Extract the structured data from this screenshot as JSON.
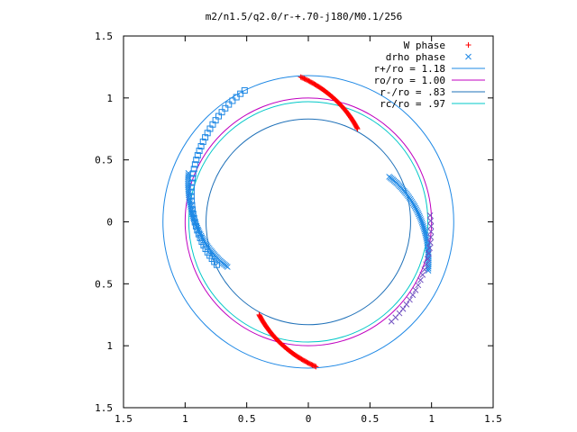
{
  "chart_data": {
    "type": "scatter",
    "title": "m2/n1.5/q2.0/r-+.70-j180/M0.1/256",
    "xlabel": "",
    "ylabel": "",
    "xlim": [
      -1.5,
      1.5
    ],
    "ylim": [
      -1.5,
      1.5
    ],
    "xticks": [
      -1.5,
      -1.0,
      -0.5,
      0,
      0.5,
      1.0,
      1.5
    ],
    "xtick_labels": [
      "1.5",
      "1",
      "0.5",
      "0",
      "0.5",
      "1",
      "1.5"
    ],
    "yticks": [
      1.5,
      1.0,
      0.5,
      0,
      -0.5,
      -1.0,
      -1.5
    ],
    "ytick_labels": [
      "1.5",
      "1",
      "0.5",
      "0",
      "0.5",
      "1",
      "1.5"
    ],
    "grid": false,
    "legend_position": "top-right",
    "circles": [
      {
        "label": "r+/ro = 1.18",
        "radius": 1.18,
        "color": "#1e88e5"
      },
      {
        "label": "ro/ro = 1.00",
        "radius": 1.0,
        "color": "#c000c0"
      },
      {
        "label": "r-/ro = .83",
        "radius": 0.83,
        "color": "#1e70b8"
      },
      {
        "label": "rc/ro = .97",
        "radius": 0.97,
        "color": "#00c8c8"
      }
    ],
    "series": [
      {
        "name": "W phase",
        "marker": "plus",
        "color": "#ff0000",
        "arcs": [
          {
            "r_start": 1.17,
            "r_end": 0.85,
            "theta_start_deg": 93,
            "theta_end_deg": 62,
            "n": 70
          },
          {
            "r_start": 1.17,
            "r_end": 0.85,
            "theta_start_deg": 273,
            "theta_end_deg": 242,
            "n": 70
          }
        ]
      },
      {
        "name": "drho phase",
        "marker": "cross",
        "color": "#1e88e5",
        "arcs": [
          {
            "r_start": 0.75,
            "r_end": 1.05,
            "theta_start_deg": 29,
            "theta_end_deg": -22,
            "n": 60
          },
          {
            "r_start": 0.75,
            "r_end": 1.05,
            "theta_start_deg": 209,
            "theta_end_deg": 158,
            "n": 60
          }
        ]
      },
      {
        "name": "",
        "marker": "square",
        "color": "#1e88e5",
        "arcs": [
          {
            "r_start": 1.18,
            "r_end": 0.82,
            "theta_start_deg": 116,
            "theta_end_deg": 205,
            "n": 44
          }
        ]
      },
      {
        "name": "",
        "marker": "cross",
        "color": "#7050c0",
        "arcs": [
          {
            "r_start": 0.99,
            "r_end": 1.05,
            "theta_start_deg": 3,
            "theta_end_deg": -50,
            "n": 22
          }
        ]
      }
    ]
  }
}
